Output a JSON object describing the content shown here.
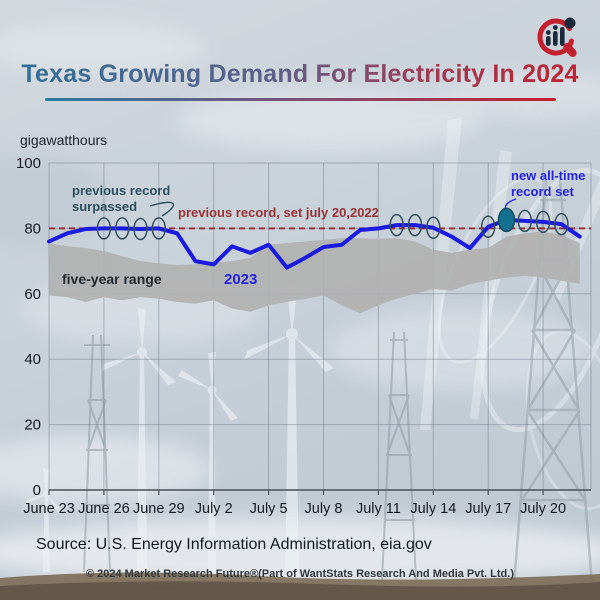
{
  "header": {
    "title": "Texas Growing Demand For Electricity In 2024"
  },
  "unit_label": "gigawatthours",
  "logo": {
    "icon": "magnifier-bar-chart-logo",
    "ring_color": "#c2202e",
    "bar_color": "#1b2a3a"
  },
  "chart_data": {
    "type": "line",
    "title": "Texas Growing Demand For Electricity In 2024",
    "ylabel": "gigawatthours",
    "ylim": [
      0,
      100
    ],
    "yticks": [
      0,
      20,
      40,
      60,
      80,
      100
    ],
    "x_tick_labels": [
      "June 23",
      "June 26",
      "June 29",
      "July 2",
      "July 5",
      "July 8",
      "July 11",
      "July 14",
      "July 17",
      "July 20"
    ],
    "x_tick_day_indices": [
      0,
      3,
      6,
      9,
      12,
      15,
      18,
      21,
      24,
      27
    ],
    "grid": true,
    "series": [
      {
        "name": "2023",
        "type": "line",
        "color": "#1a1ae0",
        "values": [
          76,
          78.5,
          79.8,
          80,
          80,
          79.8,
          80,
          78.5,
          70,
          69,
          74.5,
          72.5,
          75,
          68,
          71,
          74.3,
          75,
          79.5,
          80,
          81,
          81,
          80.2,
          77.5,
          74,
          80.5,
          82.6,
          82.3,
          82,
          81.3,
          77.5
        ]
      },
      {
        "name": "five-year range",
        "type": "band",
        "color": "#b1b1b1",
        "upper": [
          75.5,
          74.5,
          74,
          73,
          71.5,
          70,
          69.3,
          68.8,
          69,
          69.5,
          70,
          71,
          75,
          75.5,
          76,
          76.5,
          77,
          77,
          76.8,
          77,
          76,
          73.5,
          72.5,
          73.5,
          74,
          77.5,
          78.5,
          79,
          78,
          75.5
        ],
        "lower": [
          59.5,
          59,
          57.5,
          59,
          58,
          59,
          58.5,
          57.5,
          57,
          58,
          55.5,
          54.5,
          56.5,
          57.5,
          58.5,
          59.5,
          56.5,
          54,
          56.5,
          58.5,
          60,
          61.5,
          61,
          63,
          64,
          65,
          65.5,
          65,
          64,
          63
        ]
      }
    ],
    "reference_line": {
      "value": 80,
      "label": "previous record, set july 20,2022",
      "color": "#993338",
      "style": "dashed"
    },
    "annotations": {
      "surpassed_label": "previous record surpassed",
      "surpassed_circle_days": [
        3,
        4,
        5,
        6,
        19,
        20,
        21,
        24,
        26,
        27,
        28
      ],
      "circle_color": "#33505e",
      "new_record_label": "new all-time record set",
      "new_record_day": 25,
      "new_record_marker_color": "#156f8e",
      "range_label": "five-year range",
      "series_label": "2023"
    }
  },
  "footer": {
    "source": "Source: U.S. Energy Information Administration, eia.gov",
    "copyright": "© 2024 Market Research Future®(Part of WantStats Research And Media Pvt. Ltd.)"
  }
}
